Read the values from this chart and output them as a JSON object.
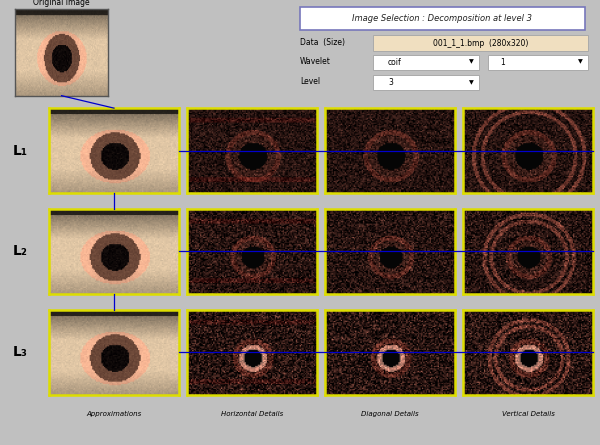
{
  "title": "Image Selection : Decomposition at level 3",
  "data_label": "Data  (Size)",
  "data_value": "001_1_1.bmp  (280x320)",
  "wavelet_label": "Wavelet",
  "wavelet_value": "coif",
  "wavelet_num": "1",
  "level_label": "Level",
  "level_value": "3",
  "original_label": "Original Image",
  "level_labels": [
    "L₁",
    "L₂",
    "L₃"
  ],
  "col_labels": [
    "Approximations",
    "Horizontal Details",
    "Diagonal Details",
    "Vertical Details"
  ],
  "fig_bg": "#c0c0c0",
  "panel_bg": "#dcdcdc",
  "yellow_border": "#dddd00",
  "conn_line_color": "#0000cc"
}
